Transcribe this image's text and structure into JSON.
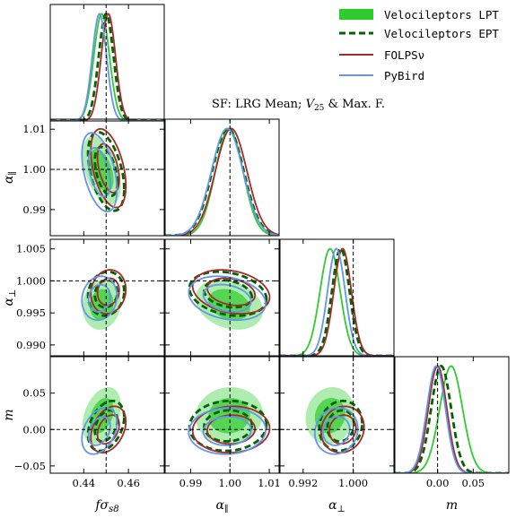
{
  "annotation": {
    "prefix": "SF: LRG Mean; ",
    "v_symbol": "V",
    "v_sub": "25",
    "suffix": " & Max. F."
  },
  "chart_data": {
    "type": "corner",
    "parameters": [
      {
        "key": "fs8",
        "label_main": "fσ",
        "label_sub": "s8",
        "range": [
          0.425,
          0.476
        ],
        "truth": 0.45,
        "ticks": [
          0.44,
          0.46
        ],
        "tick_labels": [
          "0.44",
          "0.46"
        ]
      },
      {
        "key": "apar",
        "label_main": "α",
        "label_sub": "∥",
        "range": [
          0.9835,
          1.0125
        ],
        "truth": 1.0,
        "ticks": [
          0.99,
          1.0,
          1.01
        ],
        "tick_labels": [
          "0.99",
          "1.00",
          "1.01"
        ]
      },
      {
        "key": "aperp",
        "label_main": "α",
        "label_sub": "⊥",
        "range": [
          0.9883,
          1.0065
        ],
        "truth": 1.0,
        "ticks": [
          0.992,
          1.0
        ],
        "tick_labels": [
          "0.992",
          "1.000"
        ],
        "ytick_labels": [
          "0.990",
          "0.995",
          "1.000",
          "1.005"
        ],
        "yticks": [
          0.99,
          0.995,
          1.0,
          1.005
        ]
      },
      {
        "key": "m",
        "label_main": "m",
        "label_sub": "",
        "range": [
          -0.06,
          0.1
        ],
        "truth": 0.0,
        "ticks": [
          0.0,
          0.05
        ],
        "tick_labels": [
          "0.00",
          "0.05"
        ],
        "yticks": [
          -0.05,
          0.0,
          0.05
        ],
        "ytick_labels": [
          "−0.05",
          "0.00",
          "0.05"
        ]
      }
    ],
    "series": [
      {
        "name": "Velocileptors LPT",
        "color": "#2ecc2e",
        "style": "filled",
        "mean": [
          0.448,
          0.9998,
          0.9963,
          0.019
        ],
        "sd": [
          0.0035,
          0.0035,
          0.0016,
          0.016
        ]
      },
      {
        "name": "Velocileptors EPT",
        "color": "#006400",
        "style": "dashed",
        "mean": [
          0.45,
          0.9995,
          0.998,
          0.005
        ],
        "sd": [
          0.0033,
          0.004,
          0.0014,
          0.014
        ]
      },
      {
        "name": "FOLPSν",
        "color": "#a52a2a",
        "style": "solid",
        "mean": [
          0.451,
          1.0003,
          0.9983,
          0.0
        ],
        "sd": [
          0.0032,
          0.004,
          0.0014,
          0.013
        ]
      },
      {
        "name": "PyBird",
        "color": "#6495ed",
        "style": "solid",
        "mean": [
          0.447,
          0.9993,
          0.9973,
          -0.002
        ],
        "sd": [
          0.0032,
          0.004,
          0.0014,
          0.013
        ]
      }
    ],
    "correlations": {
      "1_0": -0.45,
      "2_0": 0.1,
      "2_1": -0.25,
      "3_0": 0.35,
      "3_1": 0.05,
      "3_2": 0.1
    },
    "legend_position": "top-right",
    "grid": false
  }
}
